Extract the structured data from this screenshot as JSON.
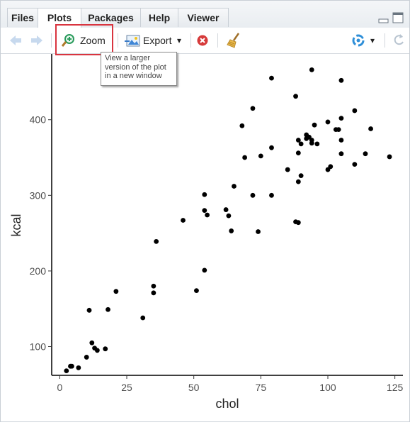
{
  "tabs": [
    {
      "label": "Files",
      "active": false
    },
    {
      "label": "Plots",
      "active": true
    },
    {
      "label": "Packages",
      "active": false
    },
    {
      "label": "Help",
      "active": false
    },
    {
      "label": "Viewer",
      "active": false
    }
  ],
  "toolbar": {
    "zoom_label": "Zoom",
    "export_label": "Export",
    "export_arrow": "▾",
    "publish_arrow": "▾"
  },
  "tooltip": {
    "lines": [
      "View a larger",
      "version of the plot",
      "in a new window"
    ]
  },
  "colors": {
    "highlight": "#d9343f",
    "points": "#000000"
  },
  "chart_data": {
    "type": "scatter",
    "xlabel": "chol",
    "ylabel": "kcal",
    "xlim": [
      -3,
      128
    ],
    "ylim": [
      62,
      487
    ],
    "xticks": [
      0,
      25,
      50,
      75,
      100,
      125
    ],
    "yticks": [
      100,
      200,
      300,
      400
    ],
    "grid": false,
    "points": [
      [
        2.5,
        68
      ],
      [
        4,
        74
      ],
      [
        4.5,
        74
      ],
      [
        7,
        72
      ],
      [
        10,
        86
      ],
      [
        12,
        105
      ],
      [
        13,
        98
      ],
      [
        14,
        95
      ],
      [
        17,
        97
      ],
      [
        11,
        148
      ],
      [
        18,
        149
      ],
      [
        21,
        173
      ],
      [
        31,
        138
      ],
      [
        35,
        180
      ],
      [
        35,
        171
      ],
      [
        36,
        239
      ],
      [
        46,
        267
      ],
      [
        51,
        174
      ],
      [
        54,
        201
      ],
      [
        54,
        301
      ],
      [
        54,
        280
      ],
      [
        55,
        274
      ],
      [
        62,
        281
      ],
      [
        63,
        273
      ],
      [
        64,
        253
      ],
      [
        65,
        312
      ],
      [
        68,
        392
      ],
      [
        69,
        350
      ],
      [
        72,
        415
      ],
      [
        72,
        300
      ],
      [
        74,
        252
      ],
      [
        75,
        352
      ],
      [
        79,
        363
      ],
      [
        79,
        300
      ],
      [
        79,
        455
      ],
      [
        85,
        334
      ],
      [
        88,
        431
      ],
      [
        88,
        265
      ],
      [
        89,
        264
      ],
      [
        89,
        318
      ],
      [
        89,
        356
      ],
      [
        89,
        373
      ],
      [
        90,
        326
      ],
      [
        90,
        368
      ],
      [
        92,
        375
      ],
      [
        92,
        380
      ],
      [
        93,
        377
      ],
      [
        94,
        373
      ],
      [
        94,
        369
      ],
      [
        94,
        466
      ],
      [
        95,
        393
      ],
      [
        96,
        368
      ],
      [
        100,
        334
      ],
      [
        100,
        397
      ],
      [
        101,
        338
      ],
      [
        103,
        387
      ],
      [
        104,
        387
      ],
      [
        105,
        452
      ],
      [
        105,
        402
      ],
      [
        105,
        373
      ],
      [
        105,
        355
      ],
      [
        110,
        412
      ],
      [
        110,
        341
      ],
      [
        114,
        355
      ],
      [
        116,
        388
      ],
      [
        123,
        351
      ]
    ]
  }
}
